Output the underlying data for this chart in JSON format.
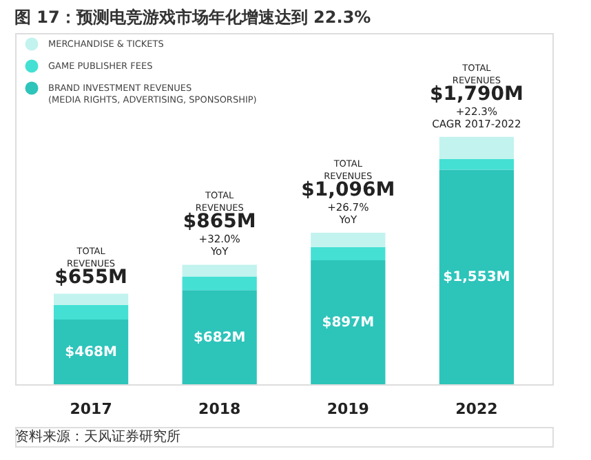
{
  "chart_data": {
    "type": "bar",
    "stacked": true,
    "title": "图 17：预测电竞游戏市场年化增速达到 22.3%",
    "categories": [
      "2017",
      "2018",
      "2019",
      "2022"
    ],
    "series": [
      {
        "name": "BRAND INVESTMENT REVENUES\n(MEDIA RIGHTS, ADVERTISING, SPONSORSHIP)",
        "color": "#2dc4ba",
        "values": [
          468,
          682,
          897,
          1553
        ],
        "value_labels": [
          "$468M",
          "$682M",
          "$897M",
          "$1,553M"
        ]
      },
      {
        "name": "GAME PUBLISHER FEES",
        "color": "#44e0d4",
        "values": [
          106,
          98,
          96,
          78
        ]
      },
      {
        "name": "MERCHANDISE & TICKETS",
        "color": "#c2f3ee",
        "values": [
          81,
          85,
          103,
          159
        ]
      }
    ],
    "totals": [
      "$655M",
      "$865M",
      "$1,096M",
      "$1,790M"
    ],
    "annotations": [
      "TOTAL\nREVENUES",
      "TOTAL\nREVENUES",
      "TOTAL\nREVENUES",
      "TOTAL\nREVENUES",
      {
        "text": "+32.0%\nYoY",
        "x": "2018",
        "y": 865
      },
      {
        "text": "+26.7%\nYoY",
        "x": "2019",
        "y": 1096
      },
      {
        "text": "+22.3%\nCAGR 2017-2022",
        "x": "2022",
        "y": 1790
      },
      "资料来源：天风证券研究所"
    ],
    "legend": "top left"
  }
}
